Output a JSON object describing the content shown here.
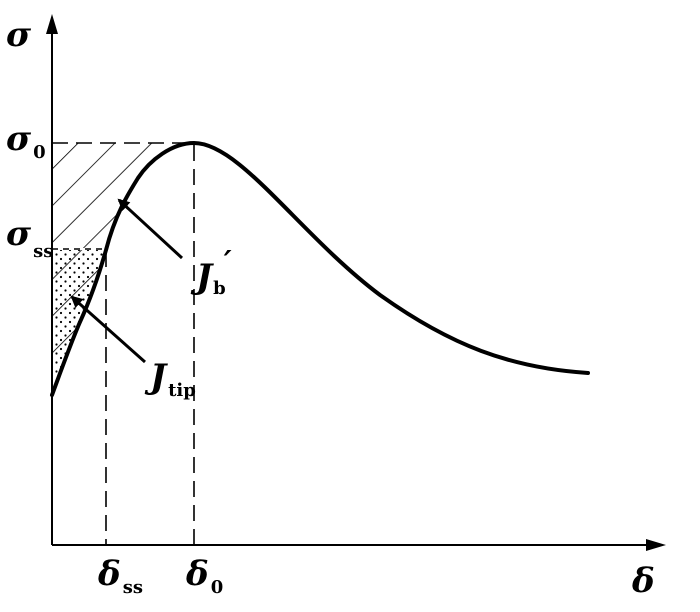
{
  "axes": {
    "y_label": "σ",
    "x_label": "δ"
  },
  "ticks": {
    "y": [
      {
        "symbol": "σ",
        "sub": "0"
      },
      {
        "symbol": "σ",
        "sub": "ss"
      }
    ],
    "x": [
      {
        "symbol": "δ",
        "sub": "ss"
      },
      {
        "symbol": "δ",
        "sub": "0"
      }
    ]
  },
  "annotations": {
    "jb": {
      "symbol": "J",
      "sub": "b",
      "prime": "′"
    },
    "jtip": {
      "symbol": "J",
      "sub": "tip"
    }
  },
  "colors": {
    "ink": "#000000",
    "background": "#ffffff"
  }
}
